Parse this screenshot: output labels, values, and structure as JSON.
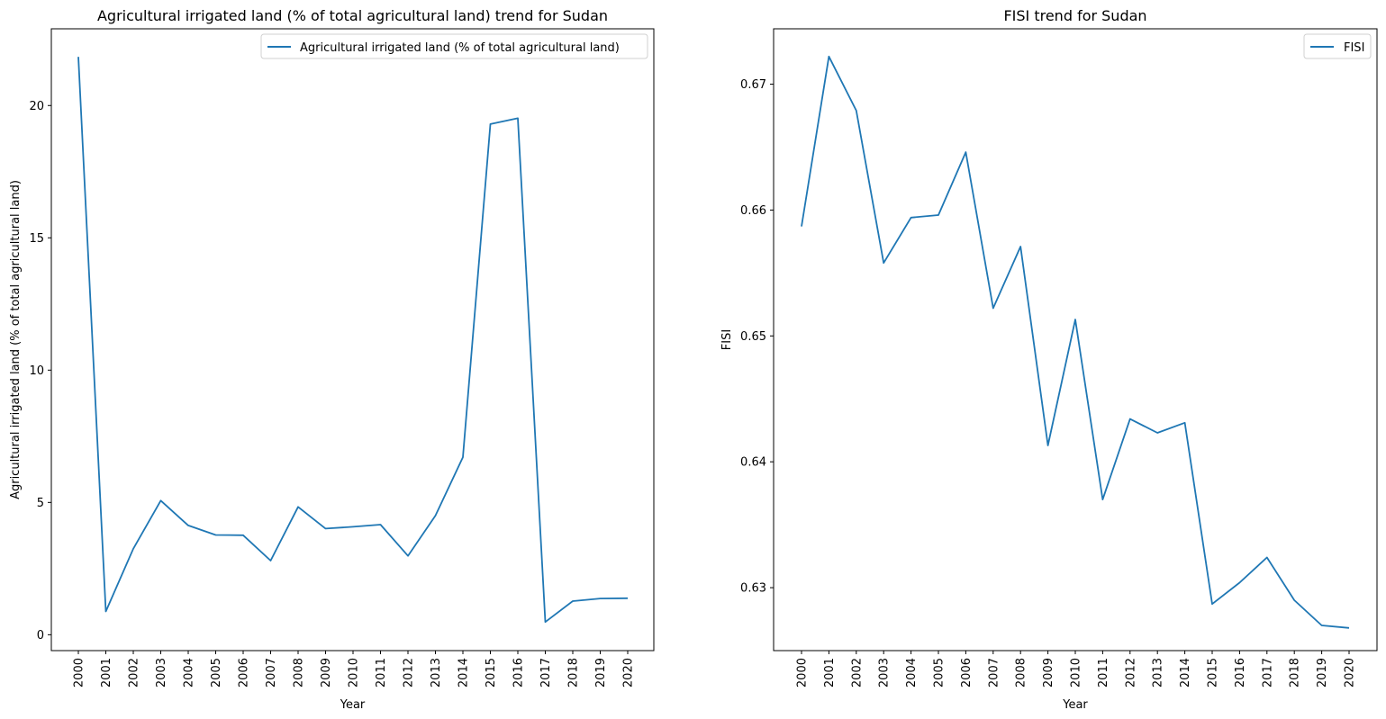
{
  "chart_data": [
    {
      "type": "line",
      "title": "Agricultural irrigated land (% of total agricultural land) trend for Sudan",
      "xlabel": "Year",
      "ylabel": "Agricultural irrigated land (% of total agricultural land)",
      "x": [
        "2000",
        "2001",
        "2002",
        "2003",
        "2004",
        "2005",
        "2006",
        "2007",
        "2008",
        "2009",
        "2010",
        "2011",
        "2012",
        "2013",
        "2014",
        "2015",
        "2016",
        "2017",
        "2018",
        "2019",
        "2020"
      ],
      "series": [
        {
          "name": "Agricultural irrigated land (% of total agricultural land)",
          "values": [
            21.84,
            0.88,
            3.25,
            5.07,
            4.13,
            3.77,
            3.76,
            2.8,
            4.83,
            4.01,
            4.08,
            4.16,
            2.98,
            4.5,
            6.71,
            19.3,
            19.52,
            0.48,
            1.27,
            1.37,
            1.38
          ]
        }
      ],
      "yticks": [
        0,
        5,
        10,
        15,
        20
      ],
      "ylim": [
        -0.6,
        22.9
      ],
      "legend_position": "top-right",
      "grid": false,
      "line_color": "#1f77b4"
    },
    {
      "type": "line",
      "title": "FISI trend for Sudan",
      "xlabel": "Year",
      "ylabel": "FISI",
      "x": [
        "2000",
        "2001",
        "2002",
        "2003",
        "2004",
        "2005",
        "2006",
        "2007",
        "2008",
        "2009",
        "2010",
        "2011",
        "2012",
        "2013",
        "2014",
        "2015",
        "2016",
        "2017",
        "2018",
        "2019",
        "2020"
      ],
      "series": [
        {
          "name": "FISI",
          "values": [
            0.6587,
            0.6722,
            0.6679,
            0.6558,
            0.6594,
            0.6596,
            0.6646,
            0.6522,
            0.6571,
            0.6413,
            0.6513,
            0.637,
            0.6434,
            0.6423,
            0.6431,
            0.6287,
            0.6304,
            0.6324,
            0.629,
            0.627,
            0.6268
          ]
        }
      ],
      "yticks": [
        0.63,
        0.64,
        0.65,
        0.66,
        0.67
      ],
      "ylim": [
        0.625,
        0.6744
      ],
      "legend_position": "top-right",
      "grid": false,
      "line_color": "#1f77b4"
    }
  ]
}
